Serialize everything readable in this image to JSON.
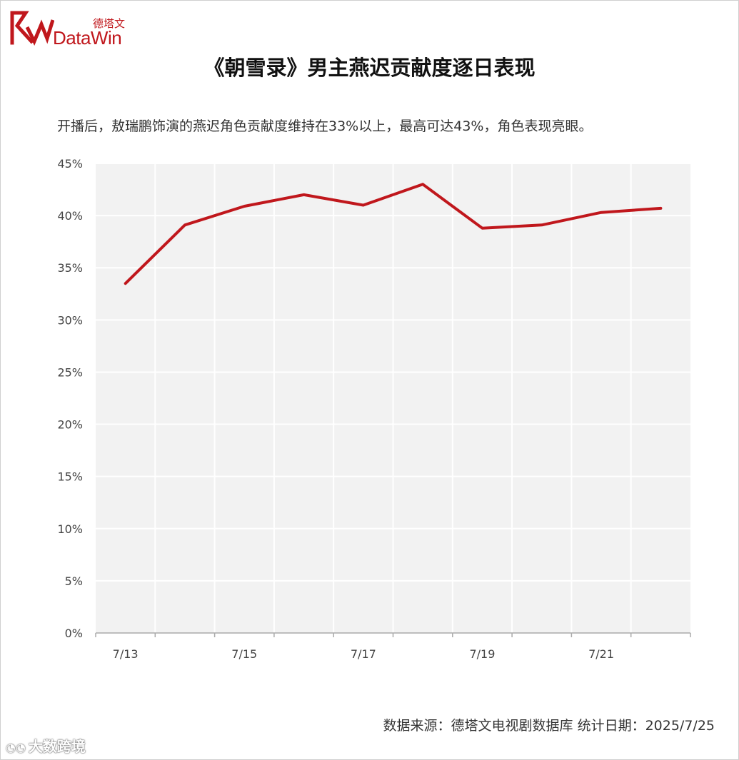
{
  "logo": {
    "cn": "德塔文",
    "en": "DataWin"
  },
  "colors": {
    "brand": "#c0171c",
    "line": "#c0171c",
    "plot_bg": "#f2f2f2",
    "grid": "#ffffff"
  },
  "title": "《朝雪录》男主燕迟贡献度逐日表现",
  "subtitle": "开播后，敖瑞鹏饰演的燕迟角色贡献度维持在33%以上，最高可达43%，角色表现亮眼。",
  "footer": "数据来源：德塔文电视剧数据库   统计日期：2025/7/25",
  "watermark": {
    "icon": "wechat-icon",
    "text": "大数跨境"
  },
  "chart_data": {
    "type": "line",
    "x": [
      "7/13",
      "7/14",
      "7/15",
      "7/16",
      "7/17",
      "7/18",
      "7/19",
      "7/20",
      "7/21",
      "7/22"
    ],
    "x_tick_labels": [
      "7/13",
      "",
      "7/15",
      "",
      "7/17",
      "",
      "7/19",
      "",
      "7/21",
      ""
    ],
    "series": [
      {
        "values": [
          33.5,
          39.1,
          40.9,
          42.0,
          41.0,
          43.0,
          38.8,
          39.1,
          40.3,
          40.7
        ]
      }
    ],
    "y_ticks": [
      "0%",
      "5%",
      "10%",
      "15%",
      "20%",
      "25%",
      "30%",
      "35%",
      "40%",
      "45%"
    ],
    "ylim": [
      0,
      45
    ],
    "y_unit": "%",
    "grid": true,
    "legend": "none"
  }
}
